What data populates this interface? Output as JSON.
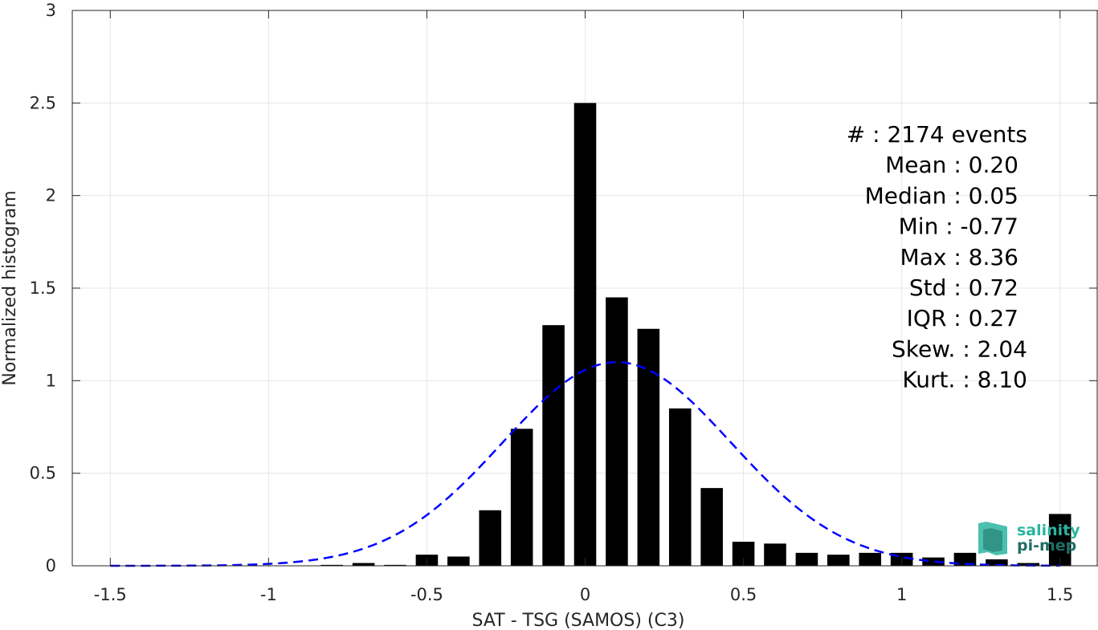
{
  "chart_data": {
    "type": "bar",
    "xlabel": "SAT - TSG (SAMOS) (C3)",
    "ylabel": "Normalized histogram",
    "xlim": [
      -1.62,
      1.62
    ],
    "ylim": [
      0,
      3
    ],
    "x_ticks": [
      "-1.5",
      "-1",
      "-0.5",
      "0",
      "0.5",
      "1",
      "1.5"
    ],
    "x_tick_values": [
      -1.5,
      -1,
      -0.5,
      0,
      0.5,
      1,
      1.5
    ],
    "y_ticks": [
      "0",
      "0.5",
      "1",
      "1.5",
      "2",
      "2.5",
      "3"
    ],
    "y_tick_values": [
      0,
      0.5,
      1,
      1.5,
      2,
      2.5,
      3
    ],
    "grid": true,
    "bin_width": 0.1,
    "bars": {
      "x": [
        -0.8,
        -0.7,
        -0.6,
        -0.5,
        -0.4,
        -0.3,
        -0.2,
        -0.1,
        0.0,
        0.1,
        0.2,
        0.3,
        0.4,
        0.5,
        0.6,
        0.7,
        0.8,
        0.9,
        1.0,
        1.1,
        1.2,
        1.3,
        1.4,
        1.5
      ],
      "values": [
        0.005,
        0.015,
        0.005,
        0.06,
        0.05,
        0.3,
        0.74,
        1.3,
        2.5,
        1.45,
        1.28,
        0.85,
        0.42,
        0.13,
        0.12,
        0.07,
        0.06,
        0.07,
        0.07,
        0.045,
        0.07,
        0.035,
        0.015,
        0.28
      ],
      "color": "#000000"
    },
    "fit_curve": {
      "style": "dashed",
      "color": "#0000ff",
      "mean": 0.1,
      "std": 0.36,
      "peak": 1.1,
      "x_range": [
        -1.5,
        1.5
      ]
    },
    "annotations": [
      "#  : 2174 events",
      "Mean : 0.20",
      "Median : 0.05",
      "Min : -0.77",
      "Max : 8.36",
      "Std : 0.72",
      "IQR : 0.27",
      "Skew. : 2.04",
      "Kurt. : 8.10"
    ]
  },
  "logo": {
    "line1": "salinity",
    "line2": "pi-mep",
    "color": "#2bb5a0",
    "dark_color": "#1f6f66"
  }
}
